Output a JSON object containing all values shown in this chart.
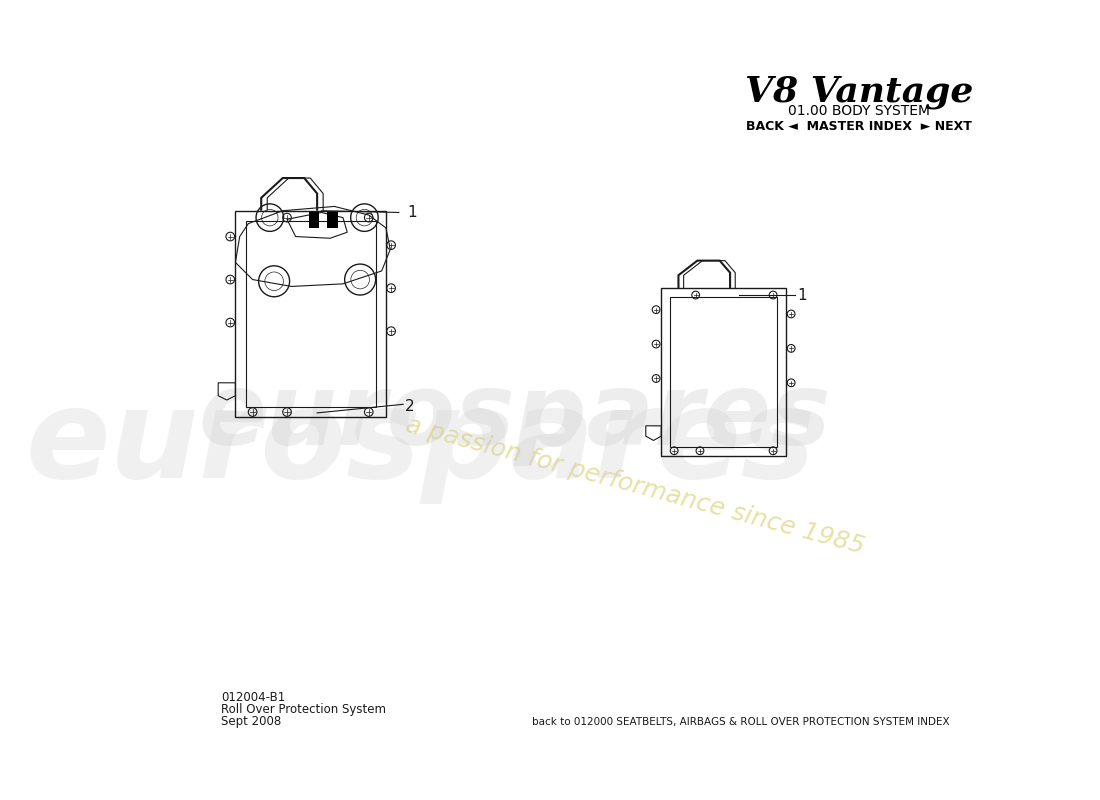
{
  "title": "V8 Vantage",
  "subtitle": "01.00 BODY SYSTEM",
  "nav": "BACK ◄  MASTER INDEX  ► NEXT",
  "part_number": "012004-B1",
  "part_name": "Roll Over Protection System",
  "date": "Sept 2008",
  "footer": "back to 012000 SEATBELTS, AIRBAGS & ROLL OVER PROTECTION SYSTEM INDEX",
  "watermark_line1": "a passion for",
  "watermark_line2": "performance since 1985",
  "label_1": "1",
  "label_2": "2",
  "bg_color": "#ffffff",
  "line_color": "#1a1a1a",
  "watermark_color": "#d4c85a",
  "title_color": "#000000",
  "nav_color": "#000000"
}
